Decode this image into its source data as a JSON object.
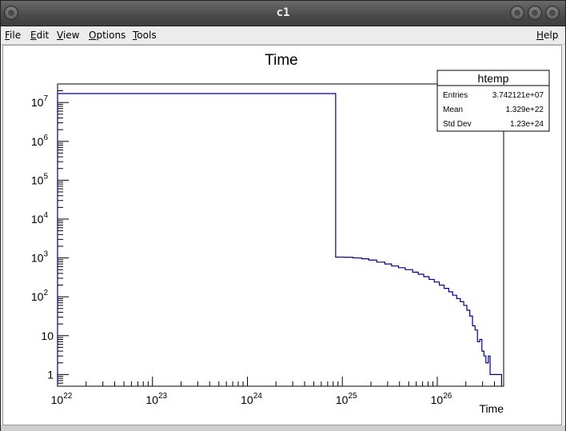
{
  "window": {
    "title": "c1",
    "titlebar_buttons": [
      "minimize-icon",
      "maximize-icon",
      "close-icon"
    ]
  },
  "menubar": {
    "file": "File",
    "edit": "Edit",
    "view": "View",
    "options": "Options",
    "tools": "Tools",
    "help": "Help"
  },
  "stats_box": {
    "name": "htemp",
    "rows": [
      {
        "label": "Entries",
        "value": "3.742121e+07"
      },
      {
        "label": "Mean",
        "value": "1.329e+22"
      },
      {
        "label": "Std Dev",
        "value": "1.23e+24"
      }
    ]
  },
  "chart_data": {
    "type": "histogram",
    "title": "Time",
    "xlabel": "Time",
    "ylabel": "",
    "x_scale": "log",
    "y_scale": "log",
    "xlim": [
      1e+22,
      5e+26
    ],
    "ylim": [
      0.5,
      30000000
    ],
    "grid": false,
    "legend": "stats box top-right",
    "line_color": "#000080",
    "x_tick_labels": [
      "10^22",
      "10^23",
      "10^24",
      "10^25",
      "10^26"
    ],
    "y_tick_labels": [
      "1",
      "10",
      "10^2",
      "10^3",
      "10^4",
      "10^5",
      "10^6",
      "10^7"
    ],
    "points": [
      {
        "x": 1e+22,
        "y": 17000000
      },
      {
        "x": 8.5e+24,
        "y": 1050
      },
      {
        "x": 1.05e+25,
        "y": 1040
      },
      {
        "x": 1.3e+25,
        "y": 1000
      },
      {
        "x": 1.6e+25,
        "y": 950
      },
      {
        "x": 1.9e+25,
        "y": 880
      },
      {
        "x": 2.3e+25,
        "y": 780
      },
      {
        "x": 2.8e+25,
        "y": 700
      },
      {
        "x": 3.3e+25,
        "y": 620
      },
      {
        "x": 3.9e+25,
        "y": 560
      },
      {
        "x": 4.6e+25,
        "y": 500
      },
      {
        "x": 5.5e+25,
        "y": 430
      },
      {
        "x": 6.3e+25,
        "y": 380
      },
      {
        "x": 7.2e+25,
        "y": 330
      },
      {
        "x": 8.2e+25,
        "y": 280
      },
      {
        "x": 9.3e+25,
        "y": 240
      },
      {
        "x": 1.05e+26,
        "y": 200
      },
      {
        "x": 1.18e+26,
        "y": 165
      },
      {
        "x": 1.32e+26,
        "y": 135
      },
      {
        "x": 1.45e+26,
        "y": 110
      },
      {
        "x": 1.6e+26,
        "y": 90
      },
      {
        "x": 1.75e+26,
        "y": 75
      },
      {
        "x": 1.9e+26,
        "y": 60
      },
      {
        "x": 2.05e+26,
        "y": 45
      },
      {
        "x": 2.2e+26,
        "y": 32
      },
      {
        "x": 2.35e+26,
        "y": 18
      },
      {
        "x": 2.5e+26,
        "y": 14
      },
      {
        "x": 2.65e+26,
        "y": 7
      },
      {
        "x": 2.8e+26,
        "y": 8
      },
      {
        "x": 2.95e+26,
        "y": 4
      },
      {
        "x": 3.1e+26,
        "y": 3
      },
      {
        "x": 3.25e+26,
        "y": 2
      },
      {
        "x": 3.45e+26,
        "y": 3
      },
      {
        "x": 3.6e+26,
        "y": 1
      },
      {
        "x": 4.05e+26,
        "y": 1
      },
      {
        "x": 4.4e+26,
        "y": 1
      }
    ]
  }
}
